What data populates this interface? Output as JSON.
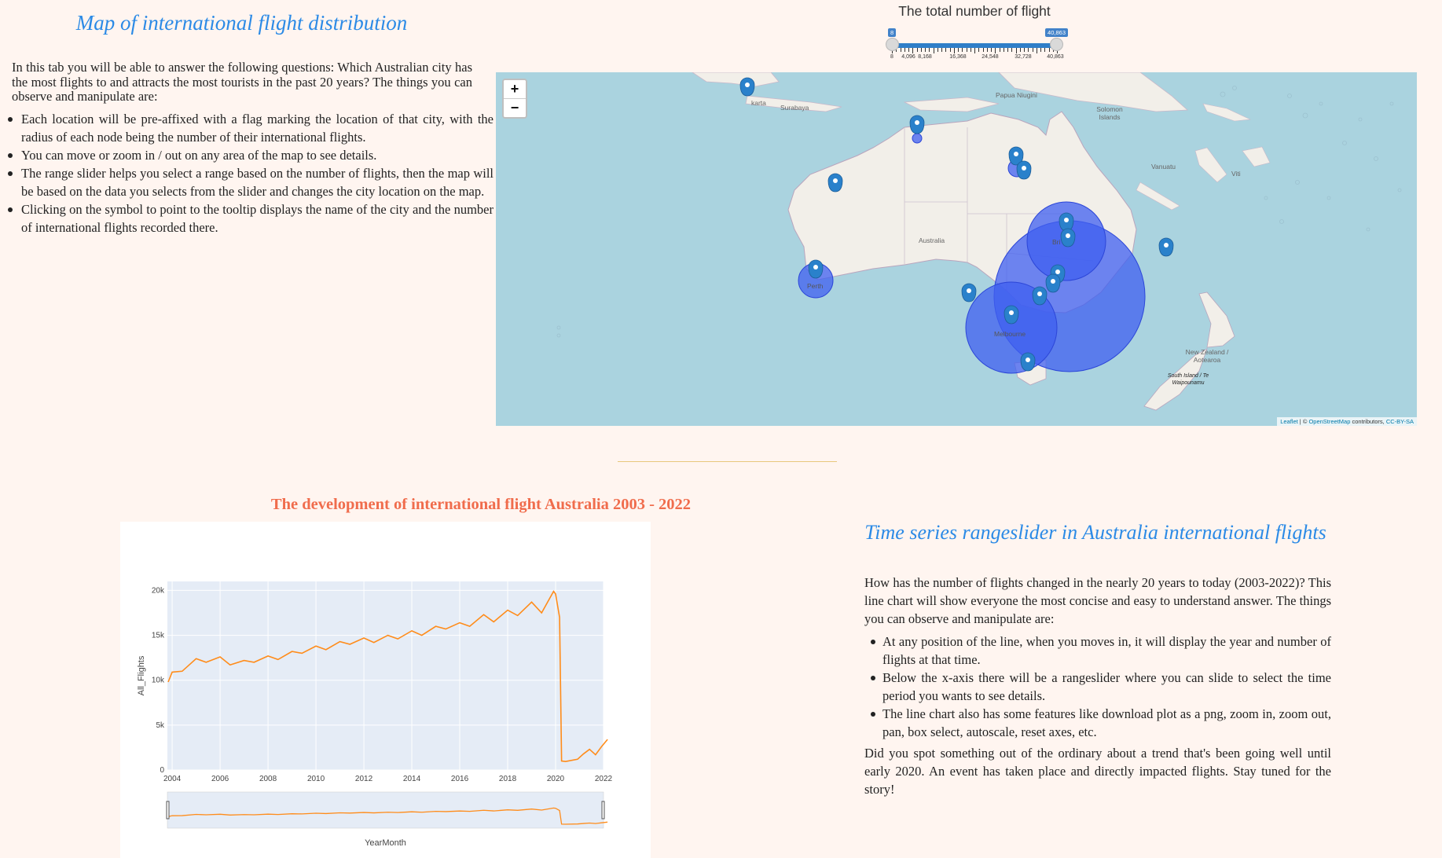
{
  "map_section": {
    "title": "Map of international flight distribution",
    "intro": "In this tab you will be able to answer the following questions: Which Australian city has the most flights to and attracts the most tourists in the past 20 years? The things you can observe and manipulate are:",
    "bullets": [
      "Each location will be pre-affixed with a flag marking the location of that city, with the radius of each node being the number of their international flights.",
      "You can move or zoom in / out on any area of the map to see details.",
      "The range slider helps you select a range based on the number of flights, then the map will be based on the data you selects from the slider and changes the city location on the map.",
      "Clicking on the symbol to point to the tooltip displays the name of the city and the number of international flights recorded there."
    ]
  },
  "slider": {
    "title": "The total number of flight",
    "min_badge": "8",
    "max_badge": "40,863",
    "tick_labels": [
      "8",
      "4,096",
      "8,168",
      "16,368",
      "24,548",
      "32,728",
      "40,863"
    ]
  },
  "map": {
    "zoom_in": "+",
    "zoom_out": "−",
    "attribution": {
      "leaflet": "Leaflet",
      "sep": " | © ",
      "osm": "OpenStreetMap",
      "mid": " contributors, ",
      "license": "CC-BY-SA"
    },
    "labels": {
      "surabaya": "Surabaya",
      "jakarta": "karta",
      "papua": "Papua Niugini",
      "solomon": "Solomon Islands",
      "vanuatu": "Vanuatu",
      "viti": "Viti",
      "australia": "Australia",
      "perth": "Perth",
      "brisbane": "Bri",
      "melbourne": "Melbourne",
      "nz": "New Zealand / Aotearoa",
      "south_island": "South Island / Te Waipounamu"
    },
    "colors": {
      "water": "#aad3df",
      "land": "#f2efe9",
      "bubble": "#3f5ff0",
      "marker": "#2a81cb"
    }
  },
  "chart_section": {
    "title": "The development of international flight Australia 2003 - 2022"
  },
  "chart_data": {
    "type": "line",
    "x": [
      "2003-11",
      "2004-01",
      "2004-06",
      "2005-01",
      "2005-06",
      "2006-01",
      "2006-06",
      "2007-01",
      "2007-06",
      "2008-01",
      "2008-06",
      "2009-01",
      "2009-06",
      "2010-01",
      "2010-06",
      "2011-01",
      "2011-06",
      "2012-01",
      "2012-06",
      "2013-01",
      "2013-06",
      "2014-01",
      "2014-06",
      "2015-01",
      "2015-06",
      "2016-01",
      "2016-06",
      "2017-01",
      "2017-06",
      "2018-01",
      "2018-06",
      "2019-01",
      "2019-06",
      "2019-12",
      "2020-01",
      "2020-03",
      "2020-04",
      "2020-06",
      "2020-12",
      "2021-03",
      "2021-06",
      "2021-09",
      "2021-12",
      "2022-03"
    ],
    "values": [
      9800,
      10900,
      11000,
      12400,
      12000,
      12600,
      11700,
      12200,
      12000,
      12700,
      12300,
      13200,
      13000,
      13800,
      13400,
      14300,
      14000,
      14700,
      14200,
      15000,
      14600,
      15500,
      15000,
      16000,
      15700,
      16400,
      16000,
      17300,
      16500,
      17800,
      17200,
      18700,
      17500,
      19900,
      19600,
      17000,
      1000,
      950,
      1200,
      1800,
      2300,
      1700,
      2600,
      3400
    ],
    "xlabel": "YearMonth",
    "ylabel": "All_Flights",
    "xlim": [
      2003.8,
      2022.0
    ],
    "ylim": [
      0,
      21000
    ],
    "x_ticks": [
      "2004",
      "2006",
      "2008",
      "2010",
      "2012",
      "2014",
      "2016",
      "2018",
      "2020",
      "2022"
    ],
    "y_ticks": [
      "0",
      "5k",
      "10k",
      "15k",
      "20k"
    ],
    "line_color": "#ff8c1a",
    "plot_bg": "#e5ecf6",
    "rangeslider": true
  },
  "ts_section": {
    "title": "Time series rangeslider in Australia international flights",
    "intro": "How has the number of flights changed in the nearly 20 years to today (2003-2022)? This line chart will show everyone the most concise and easy to understand answer. The things you can observe and manipulate are:",
    "bullets": [
      "At any position of the line, when you moves in, it will display the year and number of flights at that time.",
      "Below the x-axis there will be a rangeslider where you can slide to select the time period you wants to see details.",
      "The line chart also has some features like download plot as a png, zoom in, zoom out, pan, box select, autoscale, reset axes, etc."
    ],
    "outro": "Did you spot something out of the ordinary about a trend that's been going well until early 2020. An event has taken place and directly impacted flights. Stay tuned for the story!"
  }
}
